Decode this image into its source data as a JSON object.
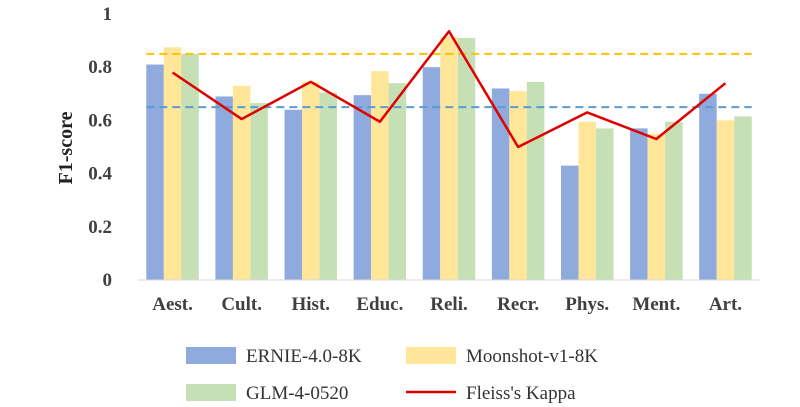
{
  "chart_data": {
    "type": "bar",
    "categories": [
      "Aest.",
      "Cult.",
      "Hist.",
      "Educ.",
      "Reli.",
      "Recr.",
      "Phys.",
      "Ment.",
      "Art."
    ],
    "series": [
      {
        "name": "ERNIE-4.0-8K",
        "color": "#8faadc",
        "values": [
          0.81,
          0.69,
          0.64,
          0.695,
          0.8,
          0.72,
          0.43,
          0.57,
          0.7
        ]
      },
      {
        "name": "Moonshot-v1-8K",
        "color": "#ffe699",
        "values": [
          0.875,
          0.73,
          0.745,
          0.785,
          0.915,
          0.71,
          0.595,
          0.55,
          0.6
        ]
      },
      {
        "name": "GLM-4-0520",
        "color": "#c5e0b4",
        "values": [
          0.85,
          0.665,
          0.705,
          0.74,
          0.91,
          0.745,
          0.57,
          0.595,
          0.615
        ]
      }
    ],
    "line_series": {
      "name": "Fleiss's Kappa",
      "color": "#e00000",
      "values": [
        0.78,
        0.605,
        0.745,
        0.595,
        0.935,
        0.5,
        0.63,
        0.53,
        0.74
      ]
    },
    "reference_lines": [
      {
        "value": 0.85,
        "color": "#ffc000",
        "style": "dashed"
      },
      {
        "value": 0.65,
        "color": "#5b9bd5",
        "style": "dashed"
      }
    ],
    "ylabel": "F1-score",
    "ylim": [
      0,
      1
    ],
    "yticks": [
      "0",
      "0.2",
      "0.4",
      "0.6",
      "0.8",
      "1"
    ],
    "legend_position": "bottom",
    "grid": false
  }
}
